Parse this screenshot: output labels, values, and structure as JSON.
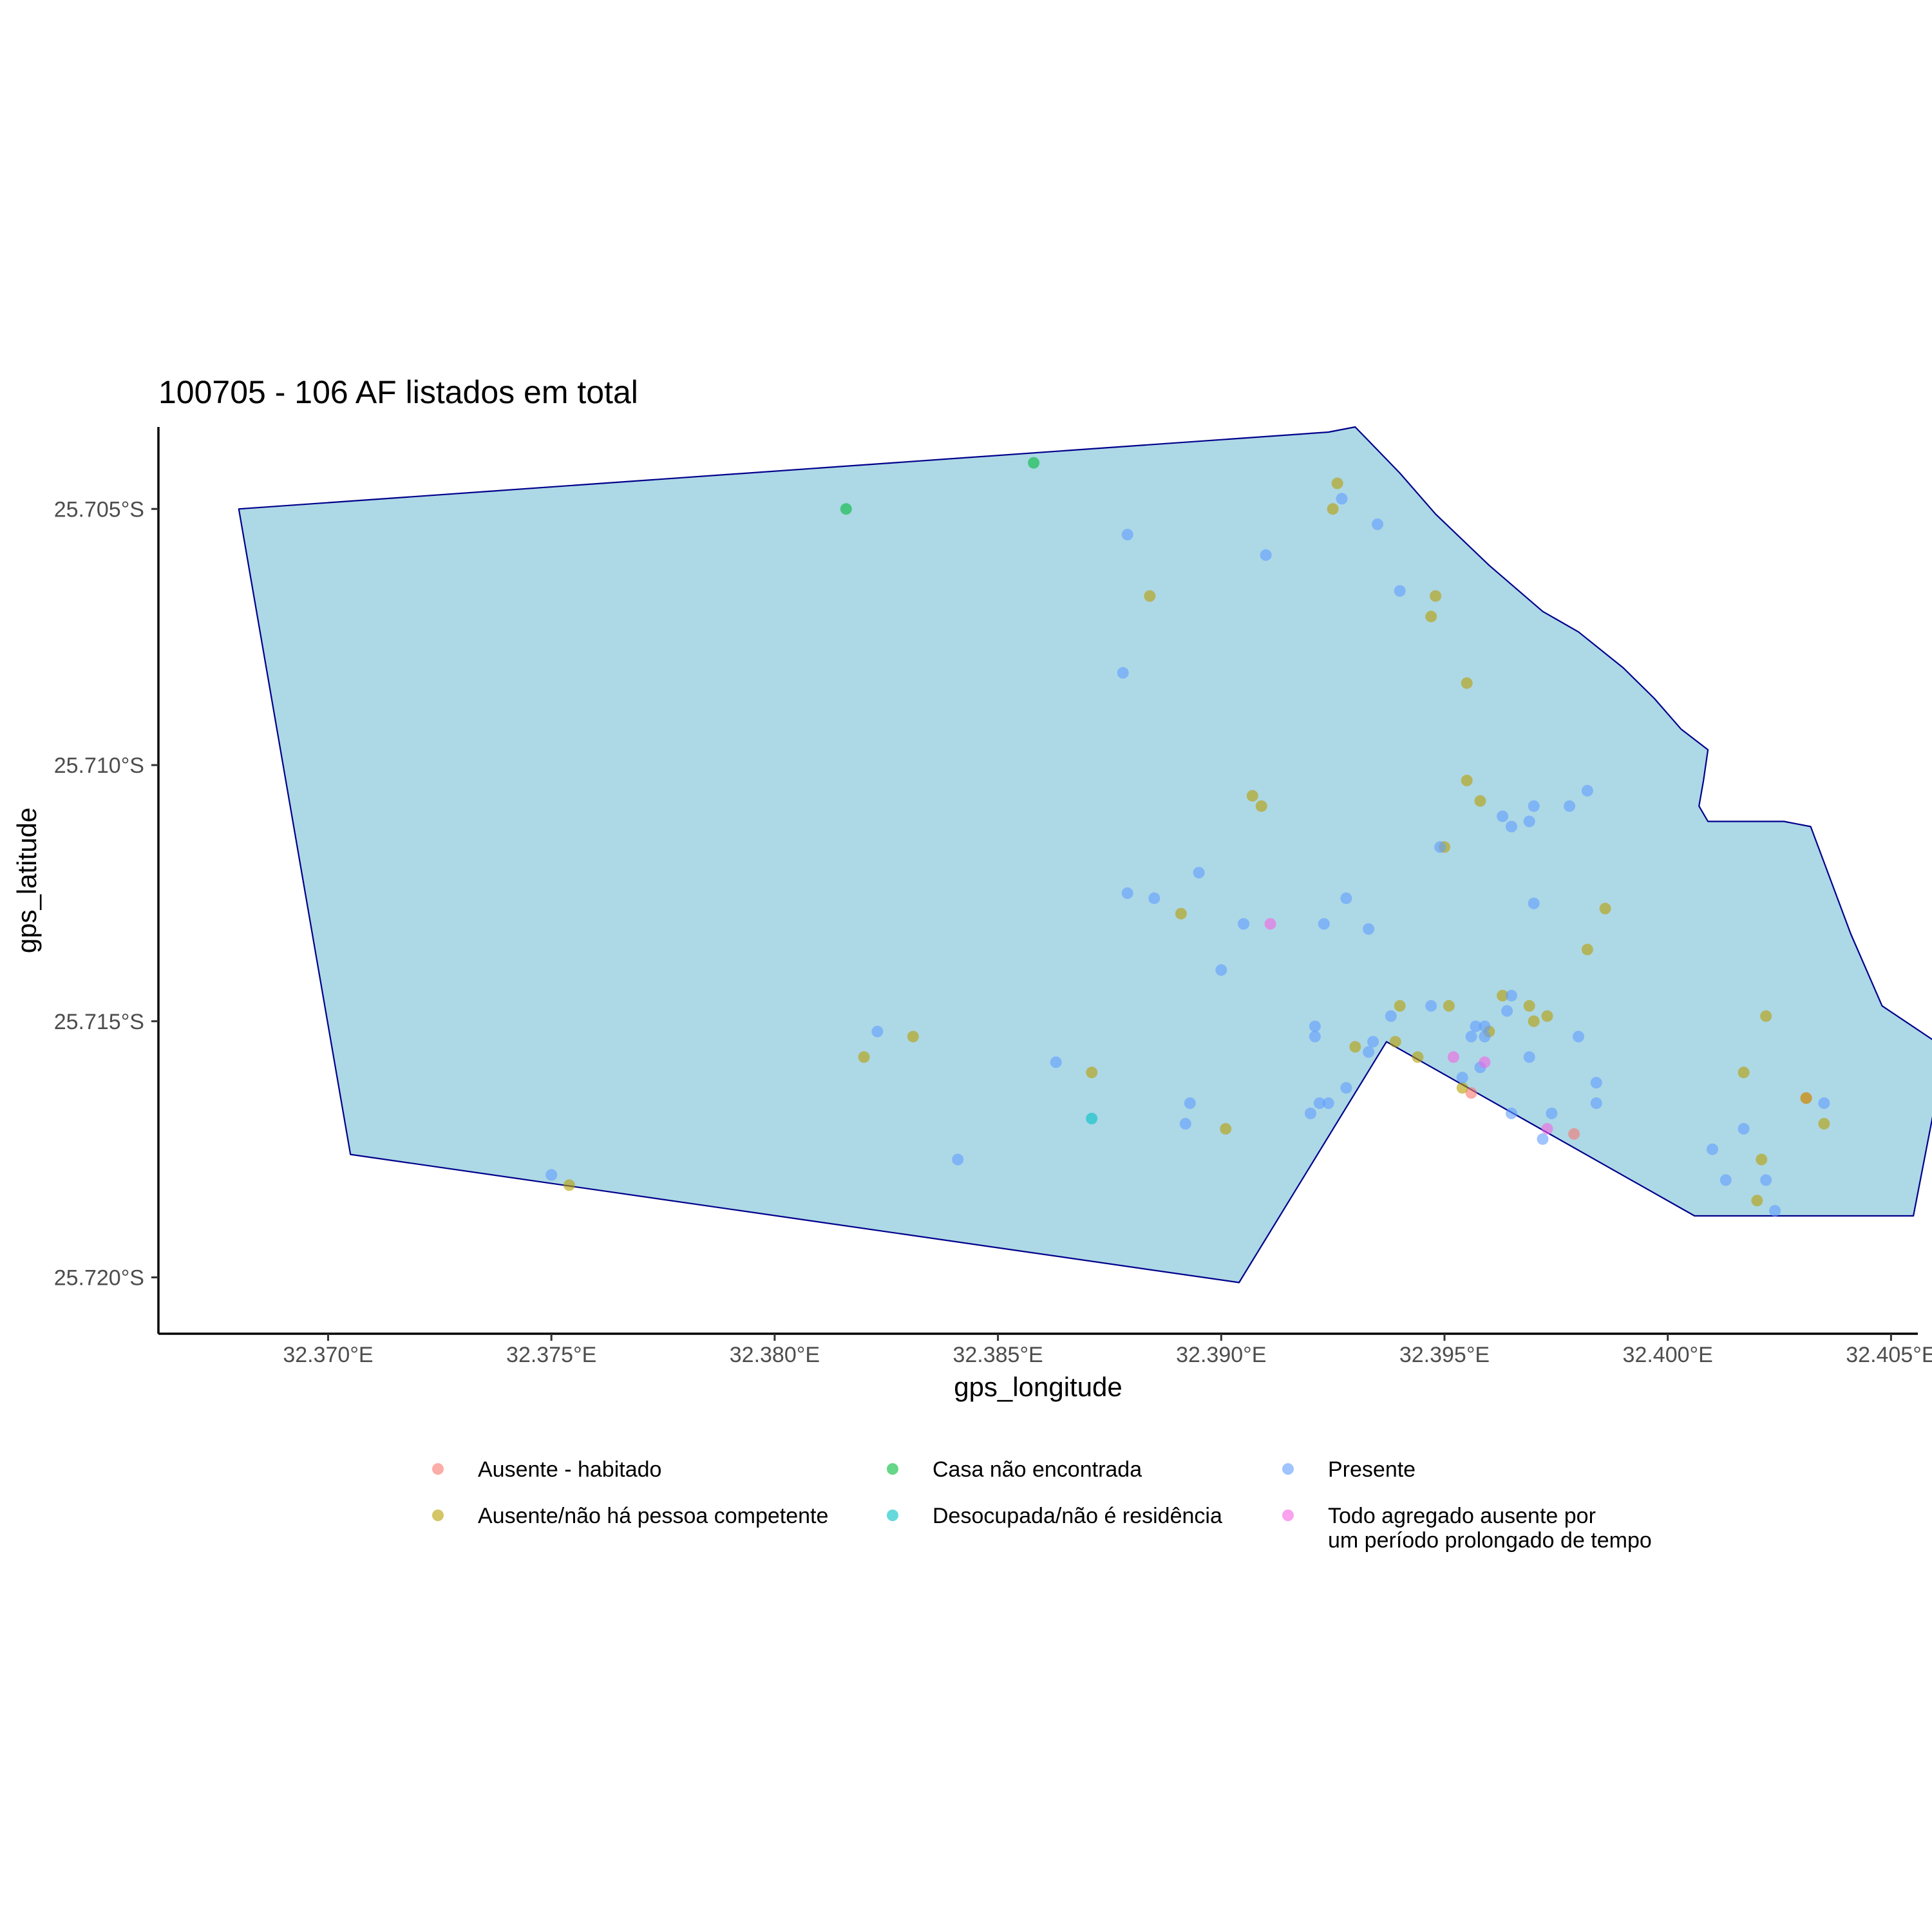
{
  "chart_data": {
    "type": "scatter",
    "title": "100705 - 106 AF listados em total",
    "xlabel": "gps_longitude",
    "ylabel": "gps_latitude",
    "xlim": [
      32.3662,
      32.4056
    ],
    "ylim": [
      -25.7211,
      -25.7034
    ],
    "x_ticks": [
      {
        "value": 32.37,
        "label": "32.370°E"
      },
      {
        "value": 32.375,
        "label": "32.375°E"
      },
      {
        "value": 32.38,
        "label": "32.380°E"
      },
      {
        "value": 32.385,
        "label": "32.385°E"
      },
      {
        "value": 32.39,
        "label": "32.390°E"
      },
      {
        "value": 32.395,
        "label": "32.395°E"
      },
      {
        "value": 32.4,
        "label": "32.400°E"
      },
      {
        "value": 32.405,
        "label": "32.405°E"
      }
    ],
    "y_ticks": [
      {
        "value": -25.705,
        "label": "25.705°S"
      },
      {
        "value": -25.71,
        "label": "25.710°S"
      },
      {
        "value": -25.715,
        "label": "25.715°S"
      },
      {
        "value": -25.72,
        "label": "25.720°S"
      }
    ],
    "boundary": [
      [
        32.368,
        -25.705
      ],
      [
        32.3924,
        -25.7035
      ],
      [
        32.393,
        -25.7034
      ],
      [
        32.394,
        -25.7043
      ],
      [
        32.3948,
        -25.7051
      ],
      [
        32.396,
        -25.7061
      ],
      [
        32.3972,
        -25.707
      ],
      [
        32.398,
        -25.7074
      ],
      [
        32.399,
        -25.7081
      ],
      [
        32.3997,
        -25.7087
      ],
      [
        32.4003,
        -25.7093
      ],
      [
        32.4009,
        -25.7097
      ],
      [
        32.4008,
        -25.7103
      ],
      [
        32.4007,
        -25.7108
      ],
      [
        32.4009,
        -25.7111
      ],
      [
        32.4026,
        -25.7111
      ],
      [
        32.4032,
        -25.7112
      ],
      [
        32.4041,
        -25.7133
      ],
      [
        32.4048,
        -25.7147
      ],
      [
        32.406,
        -25.7154
      ],
      [
        32.4061,
        -25.7161
      ],
      [
        32.4055,
        -25.7188
      ],
      [
        32.4006,
        -25.7188
      ],
      [
        32.3937,
        -25.7154
      ],
      [
        32.3904,
        -25.7201
      ],
      [
        32.3705,
        -25.7176
      ]
    ],
    "categories": [
      {
        "name": "Ausente - habitado",
        "color": "#F8766D"
      },
      {
        "name": "Ausente/não há pessoa competente",
        "color": "#B79F00"
      },
      {
        "name": "Casa não encontrada",
        "color": "#00BA38"
      },
      {
        "name": "Desocupada/não é residência",
        "color": "#00BFC4"
      },
      {
        "name": "Presente",
        "color": "#619CFF"
      },
      {
        "name": "Todo agregado ausente por um período prolongado de tempo",
        "color": "#F564E3"
      }
    ],
    "legend_labels": [
      {
        "lines": [
          "Ausente - habitado"
        ]
      },
      {
        "lines": [
          "Ausente/não há pessoa competente"
        ]
      },
      {
        "lines": [
          "Casa não encontrada"
        ]
      },
      {
        "lines": [
          "Desocupada/não é residência"
        ]
      },
      {
        "lines": [
          "Presente"
        ]
      },
      {
        "lines": [
          "Todo agregado ausente por",
          "um período prolongado de tempo"
        ]
      }
    ],
    "series": [
      {
        "name": "Ausente - habitado",
        "points": [
          [
            32.3956,
            -25.7164
          ],
          [
            32.3979,
            -25.7172
          ],
          [
            32.4031,
            -25.7165
          ]
        ]
      },
      {
        "name": "Ausente/não há pessoa competente",
        "points": [
          [
            32.3925,
            -25.705
          ],
          [
            32.3926,
            -25.7045
          ],
          [
            32.3884,
            -25.7067
          ],
          [
            32.3948,
            -25.7067
          ],
          [
            32.3947,
            -25.7071
          ],
          [
            32.3955,
            -25.7084
          ],
          [
            32.3907,
            -25.7106
          ],
          [
            32.3909,
            -25.7108
          ],
          [
            32.3955,
            -25.7103
          ],
          [
            32.3958,
            -25.7107
          ],
          [
            32.395,
            -25.7116
          ],
          [
            32.3891,
            -25.7129
          ],
          [
            32.3986,
            -25.7128
          ],
          [
            32.3982,
            -25.7136
          ],
          [
            32.394,
            -25.7147
          ],
          [
            32.3951,
            -25.7147
          ],
          [
            32.3963,
            -25.7145
          ],
          [
            32.3969,
            -25.7147
          ],
          [
            32.3973,
            -25.7149
          ],
          [
            32.397,
            -25.715
          ],
          [
            32.396,
            -25.7152
          ],
          [
            32.3939,
            -25.7154
          ],
          [
            32.393,
            -25.7155
          ],
          [
            32.3944,
            -25.7157
          ],
          [
            32.3954,
            -25.7163
          ],
          [
            32.4022,
            -25.7149
          ],
          [
            32.4017,
            -25.716
          ],
          [
            32.4031,
            -25.7165
          ],
          [
            32.4035,
            -25.717
          ],
          [
            32.4021,
            -25.7177
          ],
          [
            32.402,
            -25.7185
          ],
          [
            32.3831,
            -25.7153
          ],
          [
            32.382,
            -25.7157
          ],
          [
            32.3871,
            -25.716
          ],
          [
            32.3901,
            -25.7171
          ],
          [
            32.3754,
            -25.7182
          ]
        ]
      },
      {
        "name": "Casa não encontrada",
        "points": [
          [
            32.3858,
            -25.7041
          ],
          [
            32.3816,
            -25.705
          ]
        ]
      },
      {
        "name": "Desocupada/não é residência",
        "points": [
          [
            32.3871,
            -25.7169
          ]
        ]
      },
      {
        "name": "Presente",
        "points": [
          [
            32.3927,
            -25.7048
          ],
          [
            32.3935,
            -25.7053
          ],
          [
            32.3879,
            -25.7055
          ],
          [
            32.391,
            -25.7059
          ],
          [
            32.394,
            -25.7066
          ],
          [
            32.3878,
            -25.7082
          ],
          [
            32.3982,
            -25.7105
          ],
          [
            32.397,
            -25.7108
          ],
          [
            32.3978,
            -25.7108
          ],
          [
            32.3963,
            -25.711
          ],
          [
            32.3969,
            -25.7111
          ],
          [
            32.3965,
            -25.7112
          ],
          [
            32.3949,
            -25.7116
          ],
          [
            32.3895,
            -25.7121
          ],
          [
            32.3879,
            -25.7125
          ],
          [
            32.3885,
            -25.7126
          ],
          [
            32.3928,
            -25.7126
          ],
          [
            32.397,
            -25.7127
          ],
          [
            32.3905,
            -25.7131
          ],
          [
            32.3923,
            -25.7131
          ],
          [
            32.3933,
            -25.7132
          ],
          [
            32.39,
            -25.714
          ],
          [
            32.3965,
            -25.7145
          ],
          [
            32.3947,
            -25.7147
          ],
          [
            32.3938,
            -25.7149
          ],
          [
            32.3964,
            -25.7148
          ],
          [
            32.3957,
            -25.7151
          ],
          [
            32.3959,
            -25.7151
          ],
          [
            32.3921,
            -25.7151
          ],
          [
            32.3921,
            -25.7153
          ],
          [
            32.3956,
            -25.7153
          ],
          [
            32.3959,
            -25.7153
          ],
          [
            32.398,
            -25.7153
          ],
          [
            32.3934,
            -25.7154
          ],
          [
            32.3933,
            -25.7156
          ],
          [
            32.3969,
            -25.7157
          ],
          [
            32.3958,
            -25.7159
          ],
          [
            32.3954,
            -25.7161
          ],
          [
            32.3928,
            -25.7163
          ],
          [
            32.3984,
            -25.7162
          ],
          [
            32.3922,
            -25.7166
          ],
          [
            32.3924,
            -25.7166
          ],
          [
            32.3984,
            -25.7166
          ],
          [
            32.392,
            -25.7168
          ],
          [
            32.3965,
            -25.7168
          ],
          [
            32.3974,
            -25.7168
          ],
          [
            32.3972,
            -25.7173
          ],
          [
            32.4017,
            -25.7171
          ],
          [
            32.401,
            -25.7175
          ],
          [
            32.4013,
            -25.7181
          ],
          [
            32.4022,
            -25.7181
          ],
          [
            32.4024,
            -25.7187
          ],
          [
            32.4035,
            -25.7166
          ],
          [
            32.3823,
            -25.7152
          ],
          [
            32.3863,
            -25.7158
          ],
          [
            32.3893,
            -25.7166
          ],
          [
            32.3892,
            -25.717
          ],
          [
            32.3841,
            -25.7177
          ],
          [
            32.375,
            -25.718
          ]
        ]
      },
      {
        "name": "Todo agregado ausente por um período prolongado de tempo",
        "points": [
          [
            32.3911,
            -25.7131
          ],
          [
            32.3952,
            -25.7157
          ],
          [
            32.3959,
            -25.7158
          ],
          [
            32.3973,
            -25.7171
          ]
        ]
      }
    ]
  }
}
